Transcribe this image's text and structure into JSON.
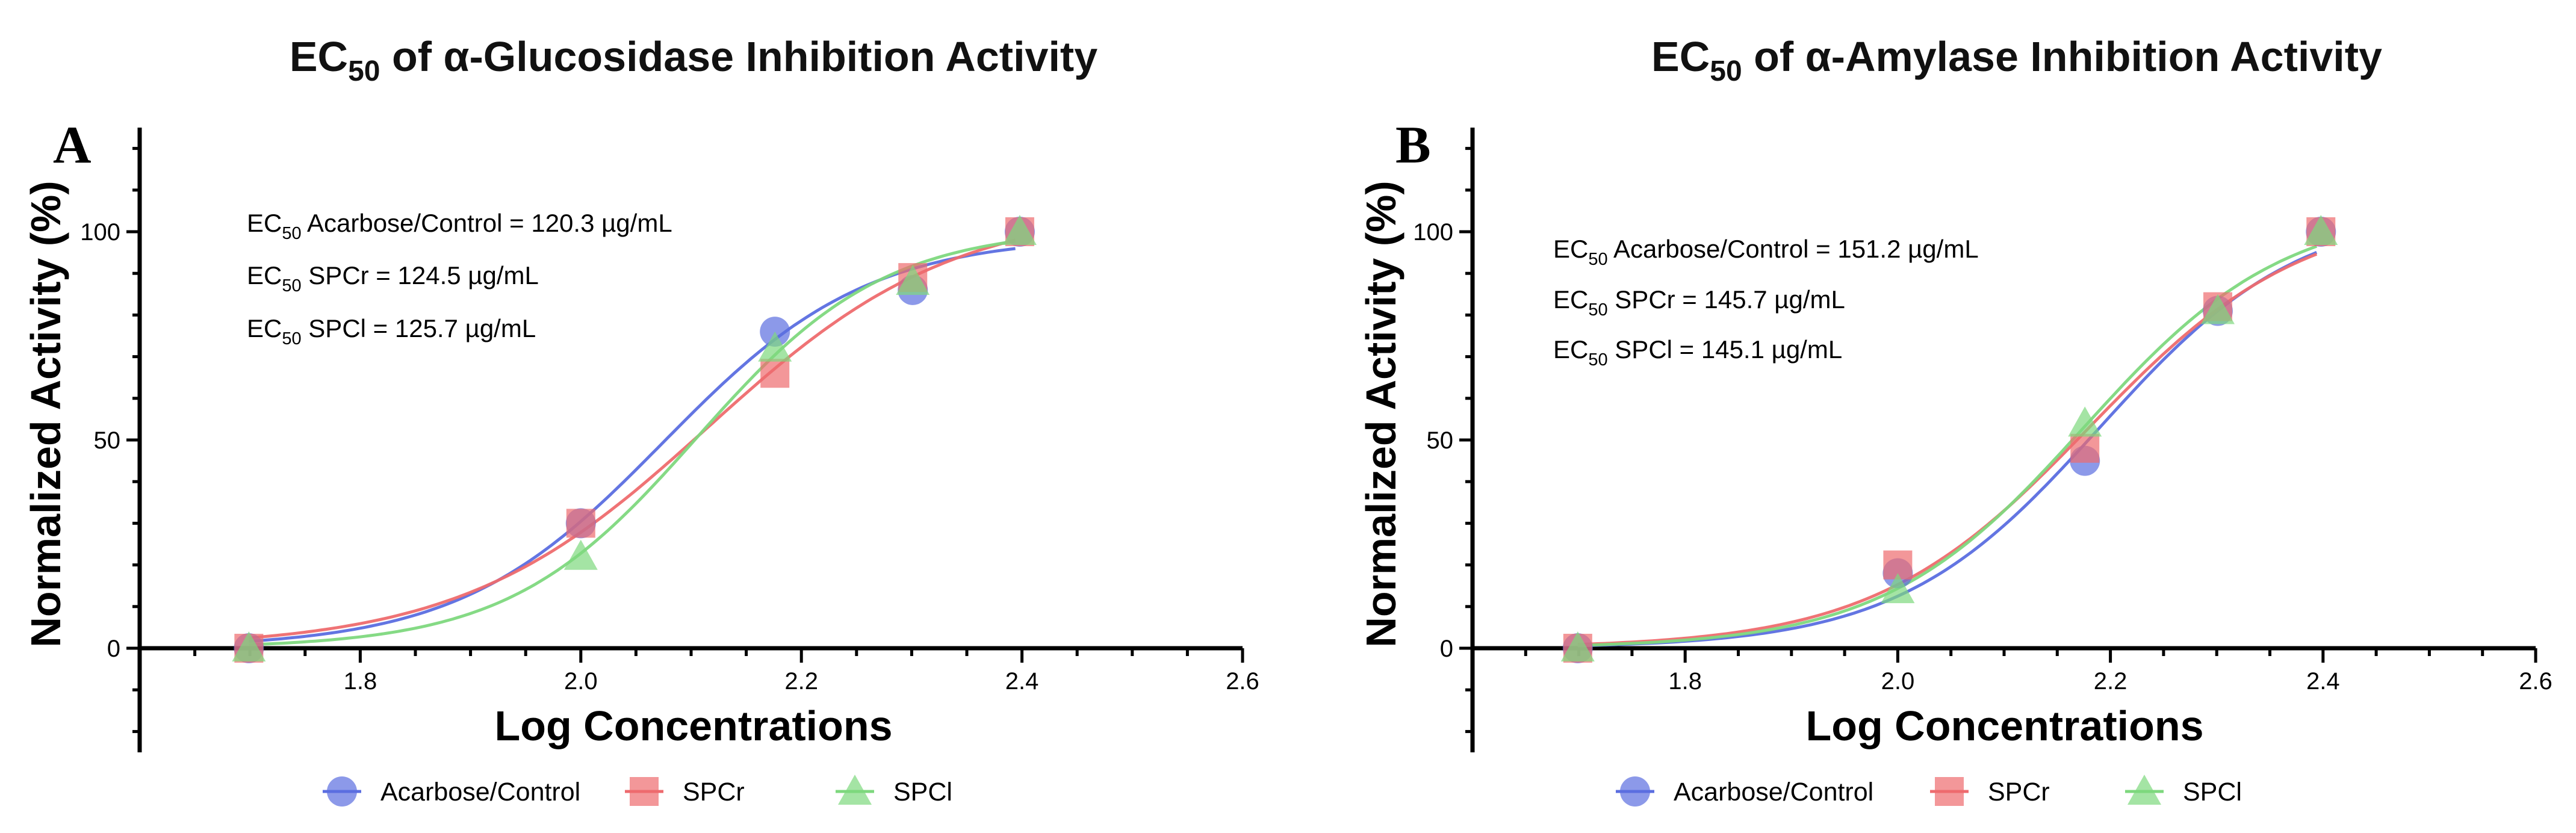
{
  "chart_data": [
    {
      "type": "scatter",
      "panel_label": "A",
      "title_prefix": "EC",
      "title_sub": "50",
      "title_rest": " of α-Glucosidase Inhibition Activity",
      "xlabel": "Log Concentrations",
      "ylabel": "Normalized Activity (%)",
      "xlim": [
        1.6,
        2.6
      ],
      "ylim": [
        -25,
        125
      ],
      "xticks": [
        "1.8",
        "2.0",
        "2.2",
        "2.4",
        "2.6"
      ],
      "yticks": [
        "0",
        "50",
        "100"
      ],
      "x": [
        1.699,
        2.0,
        2.176,
        2.301,
        2.398
      ],
      "series": [
        {
          "name": "Acarbose/Control",
          "marker": "circle",
          "color": "#5b6ee0",
          "values": [
            0,
            30,
            76,
            86,
            100
          ]
        },
        {
          "name": "SPCr",
          "marker": "square",
          "color": "#ee6b6e",
          "values": [
            0,
            30,
            66,
            89,
            100
          ]
        },
        {
          "name": "SPCl",
          "marker": "triangle",
          "color": "#7ed87e",
          "values": [
            0,
            22,
            72,
            88,
            100
          ]
        }
      ],
      "annotations": [
        {
          "pre": "EC",
          "sub": "50",
          "rest": " Acarbose/Control = 120.3 µg/mL"
        },
        {
          "pre": "EC",
          "sub": "50",
          "rest": " SPCr = 124.5 µg/mL"
        },
        {
          "pre": "EC",
          "sub": "50",
          "rest": " SPCl = 125.7 µg/mL"
        }
      ]
    },
    {
      "type": "scatter",
      "panel_label": "B",
      "title_prefix": "EC",
      "title_sub": "50",
      "title_rest": " of α-Amylase Inhibition Activity",
      "xlabel": "Log Concentrations",
      "ylabel": "Normalized Activity (%)",
      "xlim": [
        1.6,
        2.6
      ],
      "ylim": [
        -25,
        125
      ],
      "xticks": [
        "1.8",
        "2.0",
        "2.2",
        "2.4",
        "2.6"
      ],
      "yticks": [
        "0",
        "50",
        "100"
      ],
      "x": [
        1.699,
        2.0,
        2.176,
        2.301,
        2.398
      ],
      "series": [
        {
          "name": "Acarbose/Control",
          "marker": "circle",
          "color": "#5b6ee0",
          "values": [
            0,
            18,
            45,
            81,
            100
          ]
        },
        {
          "name": "SPCr",
          "marker": "square",
          "color": "#ee6b6e",
          "values": [
            0,
            20,
            48,
            82,
            100
          ]
        },
        {
          "name": "SPCl",
          "marker": "triangle",
          "color": "#7ed87e",
          "values": [
            0,
            14,
            54,
            81,
            100
          ]
        }
      ],
      "annotations": [
        {
          "pre": "EC",
          "sub": "50",
          "rest": " Acarbose/Control = 151.2 µg/mL"
        },
        {
          "pre": "EC",
          "sub": "50",
          "rest": " SPCr = 145.7 µg/mL"
        },
        {
          "pre": "EC",
          "sub": "50",
          "rest": " SPCl = 145.1 µg/mL"
        }
      ]
    }
  ]
}
